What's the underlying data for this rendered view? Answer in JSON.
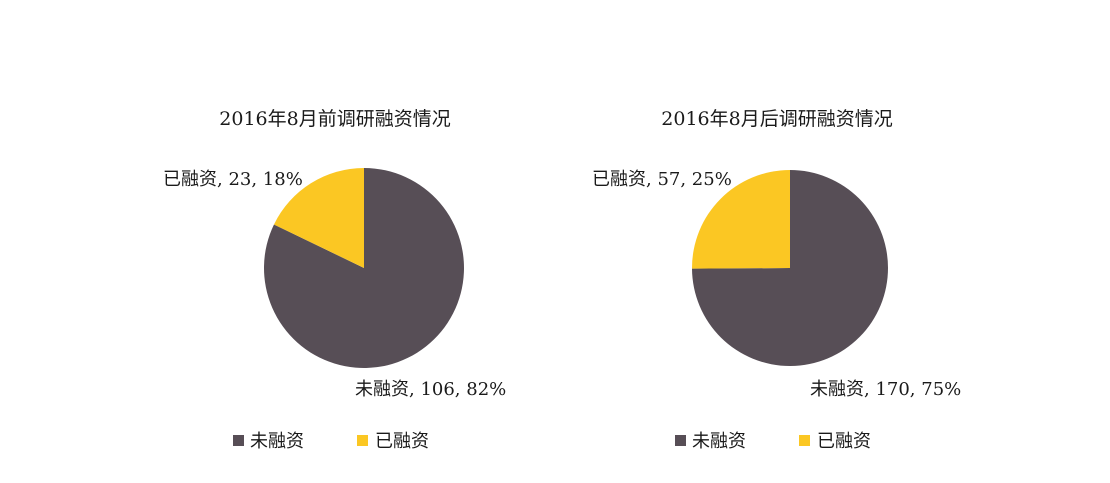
{
  "chart_data": [
    {
      "type": "pie",
      "title": "2016年8月前调研融资情况",
      "categories": [
        "未融资",
        "已融资"
      ],
      "values": [
        106,
        23
      ],
      "percentages": [
        "82%",
        "18%"
      ],
      "slice_labels": [
        "未融资, 106, 82%",
        "已融资, 23, 18%"
      ],
      "colors": [
        "#574E56",
        "#FBC723"
      ],
      "legend": [
        "未融资",
        "已融资"
      ],
      "legend_position": "bottom"
    },
    {
      "type": "pie",
      "title": "2016年8月后调研融资情况",
      "categories": [
        "未融资",
        "已融资"
      ],
      "values": [
        170,
        57
      ],
      "percentages": [
        "75%",
        "25%"
      ],
      "slice_labels": [
        "未融资, 170, 75%",
        "已融资, 57, 25%"
      ],
      "colors": [
        "#574E56",
        "#FBC723"
      ],
      "legend": [
        "未融资",
        "已融资"
      ],
      "legend_position": "bottom"
    }
  ]
}
